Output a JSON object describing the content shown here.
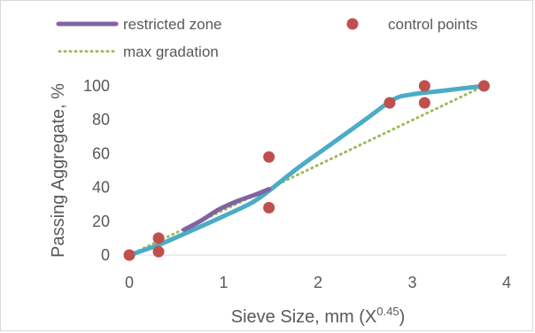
{
  "chart_data": {
    "type": "scatter",
    "xlabel": "Sieve Size, mm (X",
    "xlabel_sup": "0.45",
    "xlabel_suffix": ")",
    "ylabel": "Passing Aggregate, %",
    "xlim": [
      0,
      4
    ],
    "ylim": [
      0,
      100
    ],
    "xticks": [
      0,
      1,
      2,
      3,
      4
    ],
    "yticks": [
      0,
      20,
      40,
      60,
      80,
      100
    ],
    "grid": false,
    "legend": "top",
    "series": [
      {
        "name": "restricted zone",
        "kind": "line",
        "color": "#8064a2",
        "x": [
          0.58,
          0.75,
          0.95,
          1.15,
          1.35,
          1.48
        ],
        "y": [
          15,
          20,
          27,
          32,
          36,
          39
        ]
      },
      {
        "name": "control points",
        "kind": "scatter",
        "color": "#c0504d",
        "x": [
          0,
          0.31,
          0.31,
          1.48,
          1.48,
          2.76,
          3.13,
          3.13,
          3.76
        ],
        "y": [
          0,
          2,
          10,
          28,
          58,
          90,
          90,
          100,
          100
        ]
      },
      {
        "name": "max gradation",
        "kind": "dotted-line",
        "color": "#9bbb59",
        "x": [
          0,
          3.76
        ],
        "y": [
          0,
          100
        ]
      },
      {
        "name": "",
        "kind": "line",
        "color": "#4bacc6",
        "x": [
          0,
          0.31,
          0.6,
          1.0,
          1.3,
          1.48,
          1.8,
          2.1,
          2.5,
          2.8,
          3.0,
          3.3,
          3.76
        ],
        "y": [
          0,
          6,
          13,
          23,
          31,
          38,
          52,
          64,
          80,
          92,
          95,
          97,
          100
        ]
      }
    ]
  }
}
